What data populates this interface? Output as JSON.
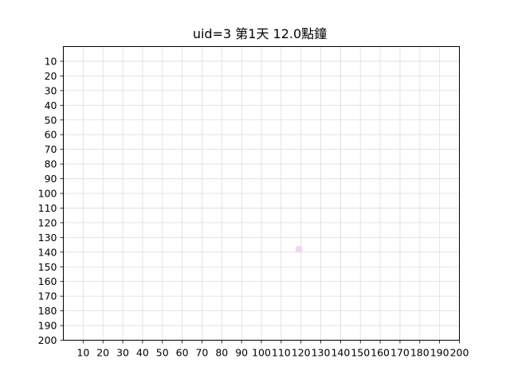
{
  "chart_data": {
    "type": "scatter",
    "title": "uid=3 第1天 12.0點鐘",
    "xlabel": "",
    "ylabel": "",
    "xlim": [
      0,
      200
    ],
    "ylim": [
      200,
      0
    ],
    "y_inverted": true,
    "grid": true,
    "x_ticks": [
      "10",
      "20",
      "30",
      "40",
      "50",
      "60",
      "70",
      "80",
      "90",
      "100",
      "110",
      "120",
      "130",
      "140",
      "150",
      "160",
      "170",
      "180",
      "190",
      "200"
    ],
    "y_ticks": [
      "10",
      "20",
      "30",
      "40",
      "50",
      "60",
      "70",
      "80",
      "90",
      "100",
      "110",
      "120",
      "130",
      "140",
      "150",
      "160",
      "170",
      "180",
      "190",
      "200"
    ],
    "points": [
      {
        "x": 119,
        "y": 138
      }
    ],
    "point_color": "#f2d6f2"
  }
}
